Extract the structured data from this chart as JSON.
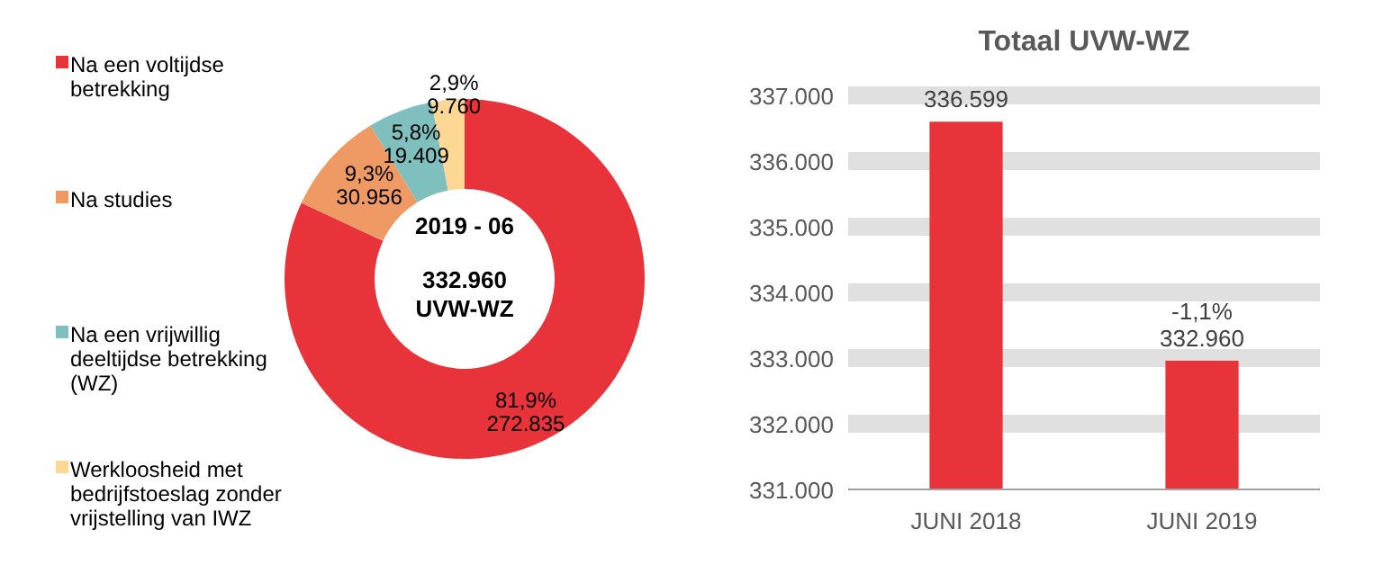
{
  "chart_data": [
    {
      "type": "donut",
      "categories": [
        "Na een voltijdse betrekking",
        "Na studies",
        "Na een vrijwillig deeltijdse betrekking (WZ)",
        "Werkloosheid met bedrijfstoeslag zonder vrijstelling van IWZ"
      ],
      "values": [
        272835,
        30956,
        19409,
        9760
      ],
      "colors": [
        "#e8333a",
        "#ef9a64",
        "#7fbfbd",
        "#fcd894"
      ],
      "value_labels": [
        "81,9%\n272.835",
        "9,3%\n30.956",
        "5,8%\n19.409",
        "2,9%\n9.760"
      ],
      "annotations": [
        "2019 - 06",
        "332.960\nUVW-WZ"
      ],
      "legend": "left"
    },
    {
      "type": "bar",
      "title": "Totaal UVW-WZ",
      "categories": [
        "JUNI 2018",
        "JUNI 2019"
      ],
      "values": [
        336599,
        332960
      ],
      "color": "#e8333a",
      "ylim": [
        331000,
        337000
      ],
      "yticks": [
        {
          "value": 331000,
          "label": "331.000"
        },
        {
          "value": 332000,
          "label": "332.000"
        },
        {
          "value": 333000,
          "label": "333.000"
        },
        {
          "value": 334000,
          "label": "334.000"
        },
        {
          "value": 335000,
          "label": "335.000"
        },
        {
          "value": 336000,
          "label": "336.000"
        },
        {
          "value": 337000,
          "label": "337.000"
        }
      ],
      "grid": "y",
      "value_labels": [
        "336.599",
        "-1,1%\n332.960"
      ]
    }
  ]
}
